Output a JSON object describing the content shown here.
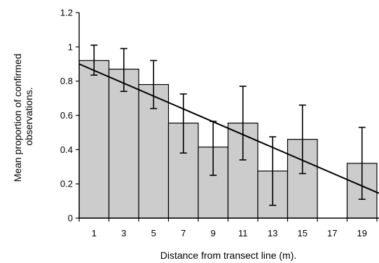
{
  "chart_data": {
    "type": "bar",
    "title": "",
    "xlabel": "Distance from transect line (m).",
    "ylabel": [
      "Mean proportion of confirmed",
      "observations."
    ],
    "categories": [
      "1",
      "3",
      "5",
      "7",
      "9",
      "11",
      "13",
      "15",
      "17",
      "19"
    ],
    "values": [
      0.92,
      0.87,
      0.78,
      0.555,
      0.415,
      0.555,
      0.275,
      0.46,
      0.0,
      0.32
    ],
    "error_lower": [
      0.835,
      0.74,
      0.64,
      0.38,
      0.25,
      0.34,
      0.075,
      0.26,
      null,
      0.11
    ],
    "error_upper": [
      1.01,
      0.99,
      0.92,
      0.725,
      0.565,
      0.77,
      0.475,
      0.66,
      null,
      0.53
    ],
    "trendline": {
      "from": [
        1,
        0.9
      ],
      "to": [
        19,
        0.145
      ]
    },
    "ylim": [
      0,
      1.2
    ],
    "yticks": [
      "0",
      "0.2",
      "0.4",
      "0.6",
      "0.8",
      "1",
      "1.2"
    ],
    "bar_color": "#cccccc",
    "grid": false,
    "legend": "none"
  }
}
